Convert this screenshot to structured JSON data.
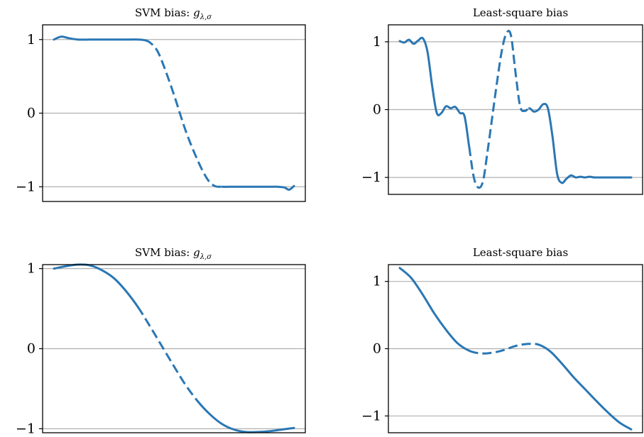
{
  "chart_data": [
    {
      "type": "line",
      "title_main": "SVM bias: ",
      "title_math": "g",
      "title_sub": "λ,σ",
      "xlabel": "",
      "ylabel": "",
      "xlim": [
        0,
        1
      ],
      "ylim": [
        -1.2,
        1.2
      ],
      "yticks": [
        1,
        0,
        -1
      ],
      "ytick_labels": [
        "1",
        "0",
        "−1"
      ],
      "grid": "horizontal",
      "color": "#2a77b4",
      "x": [
        0.0,
        0.03,
        0.06,
        0.1,
        0.15,
        0.2,
        0.25,
        0.3,
        0.35,
        0.38,
        0.4,
        0.43,
        0.46,
        0.5,
        0.55,
        0.6,
        0.64,
        0.67,
        0.7,
        0.75,
        0.8,
        0.85,
        0.9,
        0.93,
        0.96,
        0.98,
        1.0
      ],
      "y": [
        1.0,
        1.04,
        1.02,
        1.0,
        1.0,
        1.0,
        1.0,
        1.0,
        1.0,
        0.99,
        0.96,
        0.85,
        0.62,
        0.25,
        -0.25,
        -0.65,
        -0.9,
        -0.99,
        -1.0,
        -1.0,
        -1.0,
        -1.0,
        -1.0,
        -1.0,
        -1.01,
        -1.04,
        -0.99
      ],
      "dashed_segments": [
        [
          0.38,
          0.7
        ]
      ]
    },
    {
      "type": "line",
      "title_main": "Least-square bias",
      "xlabel": "",
      "ylabel": "",
      "xlim": [
        0,
        1
      ],
      "ylim": [
        -1.25,
        1.25
      ],
      "yticks": [
        1,
        0,
        -1
      ],
      "ytick_labels": [
        "1",
        "0",
        "−1"
      ],
      "grid": "horizontal",
      "color": "#2a77b4",
      "x": [
        0.0,
        0.02,
        0.04,
        0.06,
        0.08,
        0.1,
        0.12,
        0.14,
        0.16,
        0.18,
        0.2,
        0.22,
        0.24,
        0.26,
        0.28,
        0.3,
        0.32,
        0.34,
        0.36,
        0.38,
        0.4,
        0.42,
        0.44,
        0.46,
        0.48,
        0.5,
        0.52,
        0.54,
        0.56,
        0.58,
        0.6,
        0.62,
        0.64,
        0.66,
        0.68,
        0.7,
        0.72,
        0.74,
        0.76,
        0.78,
        0.8,
        0.82,
        0.84,
        0.86,
        0.88,
        0.9,
        0.92,
        0.94,
        0.96,
        0.98,
        1.0
      ],
      "y": [
        1.01,
        0.99,
        1.03,
        0.97,
        1.02,
        1.05,
        0.85,
        0.35,
        -0.05,
        -0.05,
        0.05,
        0.02,
        0.04,
        -0.05,
        -0.1,
        -0.55,
        -1.0,
        -1.15,
        -1.05,
        -0.6,
        -0.1,
        0.4,
        0.85,
        1.12,
        1.1,
        0.55,
        0.05,
        -0.02,
        0.02,
        -0.03,
        0.0,
        0.08,
        0.02,
        -0.4,
        -0.95,
        -1.08,
        -1.02,
        -0.97,
        -1.0,
        -0.99,
        -1.0,
        -0.99,
        -1.0,
        -1.0,
        -1.0,
        -1.0,
        -1.0,
        -1.0,
        -1.0,
        -1.0,
        -1.0
      ],
      "dashed_segments": [
        [
          0.3,
          0.56
        ]
      ]
    },
    {
      "type": "line",
      "title_main": "SVM bias: ",
      "title_math": "g",
      "title_sub": "λ,σ",
      "xlabel": "",
      "ylabel": "",
      "xlim": [
        0,
        1
      ],
      "ylim": [
        -1.05,
        1.05
      ],
      "yticks": [
        1,
        0,
        -1
      ],
      "ytick_labels": [
        "1",
        "0",
        "−1"
      ],
      "grid": "horizontal",
      "color": "#2a77b4",
      "x": [
        0.0,
        0.05,
        0.1,
        0.15,
        0.2,
        0.25,
        0.3,
        0.35,
        0.4,
        0.45,
        0.5,
        0.55,
        0.6,
        0.65,
        0.7,
        0.75,
        0.8,
        0.85,
        0.9,
        0.95,
        1.0
      ],
      "y": [
        1.0,
        1.03,
        1.05,
        1.04,
        0.98,
        0.88,
        0.72,
        0.52,
        0.28,
        0.03,
        -0.22,
        -0.46,
        -0.66,
        -0.82,
        -0.94,
        -1.01,
        -1.04,
        -1.04,
        -1.03,
        -1.01,
        -0.99
      ],
      "dashed_segments": [
        [
          0.35,
          0.6
        ]
      ]
    },
    {
      "type": "line",
      "title_main": "Least-square bias",
      "xlabel": "",
      "ylabel": "",
      "xlim": [
        0,
        1
      ],
      "ylim": [
        -1.25,
        1.25
      ],
      "yticks": [
        1,
        0,
        -1
      ],
      "ytick_labels": [
        "1",
        "0",
        "−1"
      ],
      "grid": "horizontal",
      "color": "#2a77b4",
      "x": [
        0.0,
        0.05,
        0.1,
        0.15,
        0.2,
        0.25,
        0.3,
        0.35,
        0.4,
        0.45,
        0.5,
        0.55,
        0.6,
        0.65,
        0.7,
        0.75,
        0.8,
        0.85,
        0.9,
        0.95,
        1.0
      ],
      "y": [
        1.2,
        1.05,
        0.8,
        0.52,
        0.28,
        0.08,
        -0.03,
        -0.07,
        -0.06,
        -0.02,
        0.04,
        0.07,
        0.06,
        -0.04,
        -0.22,
        -0.42,
        -0.6,
        -0.78,
        -0.95,
        -1.1,
        -1.2
      ],
      "dashed_segments": [
        [
          0.3,
          0.58
        ]
      ]
    }
  ]
}
